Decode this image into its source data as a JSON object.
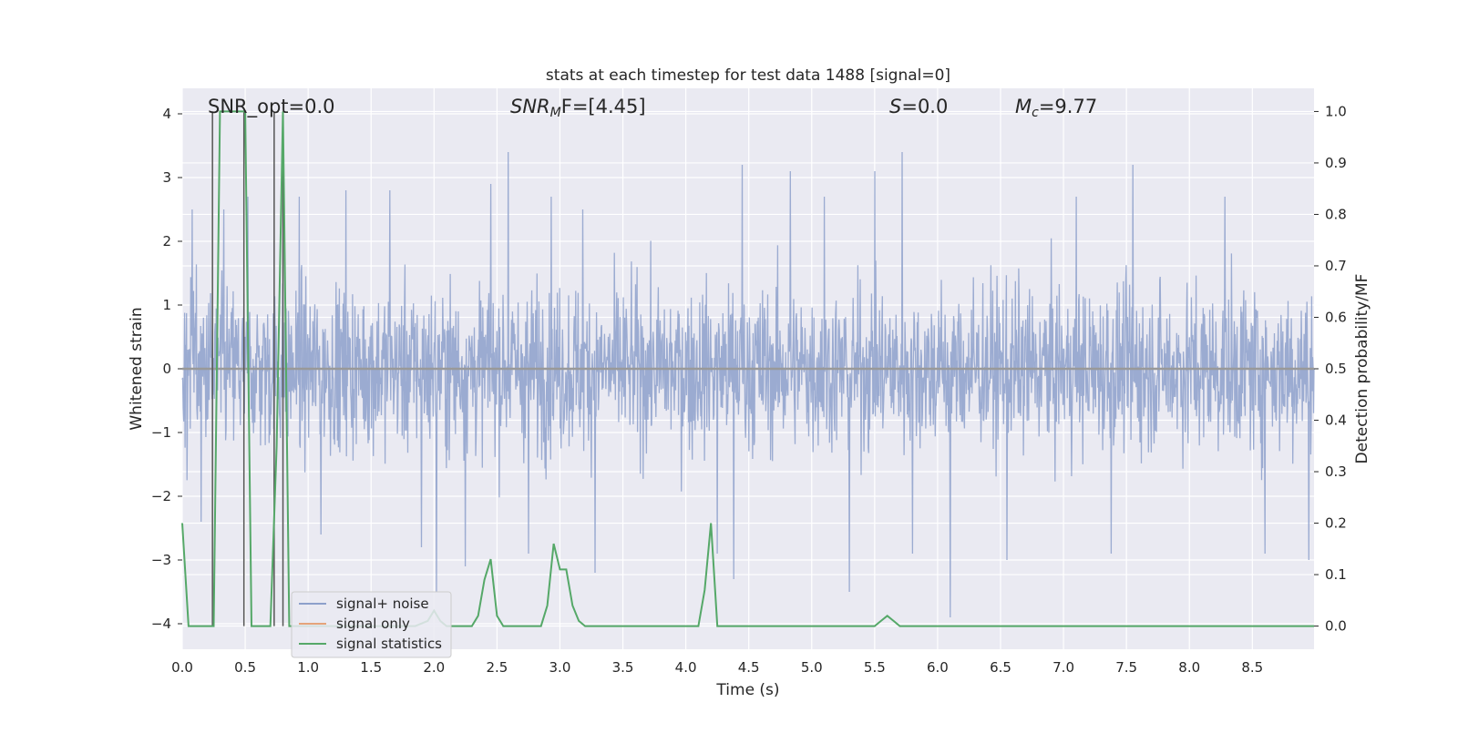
{
  "chart_data": {
    "type": "line",
    "title": "stats at each timestep for test data 1488 [signal=0]",
    "xlabel": "Time (s)",
    "ylabel": "Whitened strain",
    "y2label": "Detection probability/MF",
    "xlim": [
      0.0,
      8.99
    ],
    "ylim": [
      -4.4,
      4.4
    ],
    "y2lim": [
      -0.045,
      1.045
    ],
    "xticks": [
      "0.0",
      "0.5",
      "1.0",
      "1.5",
      "2.0",
      "2.5",
      "3.0",
      "3.5",
      "4.0",
      "4.5",
      "5.0",
      "5.5",
      "6.0",
      "6.5",
      "7.0",
      "7.5",
      "8.0",
      "8.5"
    ],
    "yticks": [
      "4",
      "3",
      "2",
      "1",
      "0",
      "−1",
      "−2",
      "−3",
      "−4"
    ],
    "y2ticks": [
      "1.0",
      "0.9",
      "0.8",
      "0.7",
      "0.6",
      "0.5",
      "0.4",
      "0.3",
      "0.2",
      "0.1",
      "0.0"
    ],
    "grid": true,
    "legend_position": "lower-left",
    "annotations": {
      "snr_opt": "SNR_opt=0.0",
      "snr_mf_sym": "SNR",
      "snr_mf_sub": "M",
      "snr_mf_rest": "F=[4.45]",
      "s_sym": "S",
      "s_rest": "=0.0",
      "mc_sym": "M",
      "mc_sub": "c",
      "mc_rest": "=9.77"
    },
    "series": [
      {
        "name": "signal+ noise",
        "color": "#8da0cb",
        "description_values": "dense noise, typical amplitude ±1.5, peaks up to ~3.4 and down to ~-3.9",
        "peaks": [
          {
            "x": 0.08,
            "y": 2.5
          },
          {
            "x": 0.33,
            "y": 2.5
          },
          {
            "x": 0.52,
            "y": 2.7
          },
          {
            "x": 0.93,
            "y": 2.7
          },
          {
            "x": 1.3,
            "y": 2.8
          },
          {
            "x": 1.65,
            "y": 2.8
          },
          {
            "x": 2.45,
            "y": 2.9
          },
          {
            "x": 2.59,
            "y": 3.4
          },
          {
            "x": 2.93,
            "y": 2.7
          },
          {
            "x": 3.18,
            "y": 2.5
          },
          {
            "x": 4.45,
            "y": 3.2
          },
          {
            "x": 4.83,
            "y": 3.1
          },
          {
            "x": 5.1,
            "y": 2.7
          },
          {
            "x": 5.5,
            "y": 3.1
          },
          {
            "x": 5.72,
            "y": 3.4
          },
          {
            "x": 6.1,
            "y": 3.2
          },
          {
            "x": 7.1,
            "y": 2.7
          },
          {
            "x": 7.55,
            "y": 3.2
          },
          {
            "x": 8.28,
            "y": 2.7
          },
          {
            "x": 8.95,
            "y": 2.9
          }
        ],
        "troughs": [
          {
            "x": 0.15,
            "y": -2.4
          },
          {
            "x": 1.1,
            "y": -2.6
          },
          {
            "x": 1.9,
            "y": -2.8
          },
          {
            "x": 2.02,
            "y": -3.5
          },
          {
            "x": 2.25,
            "y": -3.1
          },
          {
            "x": 2.75,
            "y": -2.9
          },
          {
            "x": 3.28,
            "y": -3.2
          },
          {
            "x": 4.25,
            "y": -2.9
          },
          {
            "x": 4.38,
            "y": -3.3
          },
          {
            "x": 5.3,
            "y": -3.5
          },
          {
            "x": 5.8,
            "y": -2.9
          },
          {
            "x": 6.1,
            "y": -3.9
          },
          {
            "x": 6.55,
            "y": -3.0
          },
          {
            "x": 7.38,
            "y": -2.9
          },
          {
            "x": 8.6,
            "y": -2.9
          },
          {
            "x": 8.95,
            "y": -3.0
          }
        ],
        "envelope": 1.5
      },
      {
        "name": "signal only",
        "color": "#e5a37a",
        "x": [
          0.0,
          8.99
        ],
        "y": [
          0.0,
          0.0
        ]
      },
      {
        "name": "signal statistics",
        "color": "#55a868",
        "x": [
          0.0,
          0.05,
          0.1,
          0.15,
          0.2,
          0.25,
          0.3,
          0.35,
          0.4,
          0.45,
          0.5,
          0.55,
          0.6,
          0.65,
          0.7,
          0.75,
          0.8,
          0.85,
          0.9,
          0.95,
          1.0,
          1.5,
          1.85,
          1.95,
          2.0,
          2.05,
          2.1,
          2.15,
          2.2,
          2.3,
          2.35,
          2.4,
          2.45,
          2.5,
          2.55,
          2.6,
          2.65,
          2.85,
          2.9,
          2.95,
          3.0,
          3.05,
          3.1,
          3.15,
          3.2,
          3.25,
          3.3,
          3.35,
          3.4,
          4.1,
          4.15,
          4.2,
          4.25,
          4.3,
          4.35,
          4.4,
          5.45,
          5.5,
          5.55,
          5.6,
          5.65,
          5.7,
          5.75,
          8.99
        ],
        "y": [
          0.2,
          0.0,
          0.0,
          0.0,
          0.0,
          0.0,
          1.0,
          1.0,
          1.0,
          1.0,
          1.0,
          0.0,
          0.0,
          0.0,
          0.0,
          0.35,
          1.0,
          0.0,
          0.0,
          0.0,
          0.0,
          0.0,
          0.0,
          0.01,
          0.03,
          0.01,
          0.0,
          0.0,
          0.0,
          0.0,
          0.02,
          0.09,
          0.13,
          0.02,
          0.0,
          0.0,
          0.0,
          0.0,
          0.04,
          0.16,
          0.11,
          0.11,
          0.04,
          0.01,
          0.0,
          0.0,
          0.0,
          0.0,
          0.0,
          0.0,
          0.07,
          0.2,
          0.0,
          0.0,
          0.0,
          0.0,
          0.0,
          0.0,
          0.01,
          0.02,
          0.01,
          0.0,
          0.0,
          0.0
        ]
      }
    ],
    "vertical_markers": [
      0.24,
      0.49,
      0.73,
      0.8
    ]
  },
  "legend": {
    "items": [
      {
        "label": "signal+ noise",
        "color": "#8da0cb"
      },
      {
        "label": "signal only",
        "color": "#e5a37a"
      },
      {
        "label": "signal statistics",
        "color": "#55a868"
      }
    ]
  }
}
